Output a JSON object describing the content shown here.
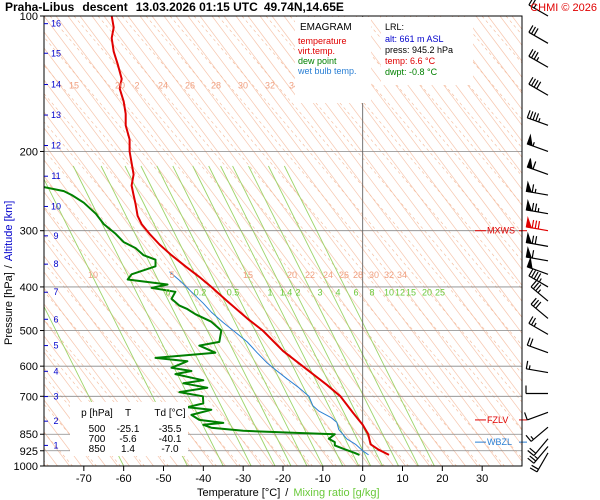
{
  "header": {
    "station": "Praha-Libus",
    "mode": "descent",
    "datetime": "13.03.2026 01:15 UTC",
    "coords": "49.74N,14.65E",
    "credit": "CHMI © 2026"
  },
  "legend": {
    "title": "EMAGRAM",
    "items": [
      {
        "label": "temperature",
        "color": "#e00000"
      },
      {
        "label": "virt.temp.",
        "color": "#e00000"
      },
      {
        "label": "dew point",
        "color": "#008000"
      },
      {
        "label": "wet bulb temp.",
        "color": "#2a7fd4"
      }
    ]
  },
  "lrl": {
    "title": "LRL:",
    "alt": "alt: 661 m ASL",
    "press": "press: 945.2 hPa",
    "temp": "temp: 6.6 °C",
    "dwpt": "dwpt: -0.8 °C",
    "alt_color": "#0000cc",
    "press_color": "#000000",
    "temp_color": "#e00000",
    "dwpt_color": "#008000"
  },
  "table": {
    "headers": [
      "p [hPa]",
      "T",
      "Td [°C]"
    ],
    "rows": [
      [
        "500",
        "-25.1",
        "-35.5"
      ],
      [
        "700",
        "-5.6",
        "-40.1"
      ],
      [
        "850",
        "1.4",
        "-7.0"
      ]
    ]
  },
  "levels": [
    {
      "label": "MXWS",
      "p": 300,
      "color": "#e00000"
    },
    {
      "label": "FZLV",
      "p": 790,
      "color": "#e00000"
    },
    {
      "label": "WBZL",
      "p": 885,
      "color": "#2a7fd4"
    }
  ],
  "axes": {
    "ylabel_pressure": "Pressure [hPa]",
    "ylabel_sep": "/",
    "ylabel_altitude": "Altitude [km]",
    "xlabel_temp": "Temperature [°C]",
    "xlabel_sep": "/",
    "xlabel_mix": "Mixing ratio [g/kg]"
  },
  "chart_data": {
    "type": "line",
    "title": "Praha-Libus descent 13.03.2026 01:15 UTC 49.74N,14.65E",
    "xlabel": "Temperature [°C] / Mixing ratio [g/kg]",
    "ylabel": "Pressure [hPa] / Altitude [km]",
    "xlim": [
      -80,
      40
    ],
    "ylim": [
      1000,
      100
    ],
    "y_scale": "log",
    "x_ticks": [
      -70,
      -60,
      -50,
      -40,
      -30,
      -20,
      -10,
      0,
      10,
      20,
      30
    ],
    "y_ticks": [
      100,
      200,
      300,
      400,
      500,
      600,
      700,
      850,
      925,
      1000
    ],
    "altitude_ticks": [
      {
        "km": 1,
        "p": 900
      },
      {
        "km": 2,
        "p": 795
      },
      {
        "km": 3,
        "p": 701
      },
      {
        "km": 4,
        "p": 616
      },
      {
        "km": 5,
        "p": 540
      },
      {
        "km": 6,
        "p": 472
      },
      {
        "km": 7,
        "p": 411
      },
      {
        "km": 8,
        "p": 356
      },
      {
        "km": 9,
        "p": 308
      },
      {
        "km": 10,
        "p": 265
      },
      {
        "km": 11,
        "p": 227
      },
      {
        "km": 12,
        "p": 194
      },
      {
        "km": 13,
        "p": 166
      },
      {
        "km": 14,
        "p": 142
      },
      {
        "km": 15,
        "p": 121
      },
      {
        "km": 16,
        "p": 104
      }
    ],
    "mixing_ratio_labels_upper": [
      "15",
      "20",
      "2",
      "24",
      "26",
      "28",
      "30",
      "32",
      "34"
    ],
    "mixing_ratio_labels_mid": [
      "10",
      "5",
      "15",
      "20",
      "22",
      "24",
      "26",
      "28",
      "30",
      "32",
      "34"
    ],
    "mixing_ratio_labels_green": [
      "0",
      "0.2",
      "0.5",
      "1",
      "1.4",
      "2",
      "3",
      "4",
      "6",
      "8",
      "10",
      "12",
      "15",
      "20",
      "25"
    ],
    "series": [
      {
        "name": "temperature",
        "color": "#e00000",
        "points": [
          [
            6.6,
            945
          ],
          [
            4,
            920
          ],
          [
            2,
            895
          ],
          [
            1.4,
            850
          ],
          [
            0,
            810
          ],
          [
            -1,
            790
          ],
          [
            -2.5,
            760
          ],
          [
            -5.6,
            700
          ],
          [
            -9,
            660
          ],
          [
            -14,
            610
          ],
          [
            -20,
            555
          ],
          [
            -25.1,
            500
          ],
          [
            -29,
            470
          ],
          [
            -34,
            430
          ],
          [
            -38,
            400
          ],
          [
            -41,
            380
          ],
          [
            -44.5,
            360
          ],
          [
            -48,
            340
          ],
          [
            -51,
            322
          ],
          [
            -53.5,
            305
          ],
          [
            -55.5,
            290
          ],
          [
            -56.5,
            278
          ],
          [
            -57,
            262
          ],
          [
            -57.5,
            250
          ],
          [
            -58,
            238
          ],
          [
            -57.5,
            225
          ],
          [
            -58,
            212
          ],
          [
            -58.5,
            200
          ],
          [
            -58.5,
            188
          ],
          [
            -59.5,
            175
          ],
          [
            -59.5,
            165
          ],
          [
            -60,
            155
          ],
          [
            -61,
            145
          ],
          [
            -60.5,
            138
          ],
          [
            -61.5,
            128
          ],
          [
            -62.5,
            120
          ],
          [
            -63,
            112
          ],
          [
            -62.5,
            106
          ],
          [
            -63,
            100
          ]
        ]
      },
      {
        "name": "dew point",
        "color": "#008000",
        "points": [
          [
            -0.8,
            945
          ],
          [
            -2,
            935
          ],
          [
            -5,
            915
          ],
          [
            -7,
            900
          ],
          [
            -7,
            885
          ],
          [
            -8.5,
            870
          ],
          [
            -7,
            850
          ],
          [
            -15,
            845
          ],
          [
            -30,
            835
          ],
          [
            -38,
            822
          ],
          [
            -40,
            810
          ],
          [
            -35,
            802
          ],
          [
            -41,
            790
          ],
          [
            -43,
            770
          ],
          [
            -38,
            750
          ],
          [
            -44,
            740
          ],
          [
            -40,
            726
          ],
          [
            -40.1,
            700
          ],
          [
            -46,
            685
          ],
          [
            -39,
            670
          ],
          [
            -45,
            655
          ],
          [
            -40,
            645
          ],
          [
            -47,
            625
          ],
          [
            -43,
            615
          ],
          [
            -48,
            605
          ],
          [
            -44,
            585
          ],
          [
            -52,
            575
          ],
          [
            -37,
            560
          ],
          [
            -41,
            540
          ],
          [
            -36,
            530
          ],
          [
            -35.5,
            500
          ],
          [
            -38,
            478
          ],
          [
            -42,
            460
          ],
          [
            -44,
            448
          ],
          [
            -46,
            440
          ],
          [
            -48,
            425
          ],
          [
            -47,
            410
          ],
          [
            -53,
            402
          ],
          [
            -49,
            395
          ],
          [
            -59,
            385
          ],
          [
            -58,
            375
          ],
          [
            -52,
            360
          ],
          [
            -52,
            348
          ],
          [
            -55,
            340
          ],
          [
            -57,
            328
          ],
          [
            -60,
            318
          ],
          [
            -62,
            305
          ],
          [
            -65,
            290
          ],
          [
            -67,
            275
          ],
          [
            -70,
            260
          ],
          [
            -73,
            250
          ],
          [
            -75,
            245
          ],
          [
            -80,
            240
          ]
        ]
      },
      {
        "name": "wet bulb temp.",
        "color": "#2a7fd4",
        "points": [
          [
            1.5,
            945
          ],
          [
            0,
            925
          ],
          [
            -1.8,
            895
          ],
          [
            -4,
            870
          ],
          [
            -5,
            850
          ],
          [
            -6,
            830
          ],
          [
            -6.5,
            800
          ],
          [
            -8,
            780
          ],
          [
            -11,
            755
          ],
          [
            -12.5,
            735
          ],
          [
            -13.5,
            700
          ],
          [
            -16,
            670
          ],
          [
            -19,
            640
          ],
          [
            -22,
            610
          ],
          [
            -24,
            590
          ],
          [
            -26.5,
            560
          ],
          [
            -29,
            530
          ],
          [
            -32.5,
            500
          ],
          [
            -35,
            480
          ],
          [
            -38,
            455
          ],
          [
            -40,
            435
          ],
          [
            -43,
            410
          ],
          [
            -45.5,
            390
          ],
          [
            -48.5,
            370
          ]
        ]
      }
    ],
    "wind_barbs": [
      {
        "p": 100,
        "dir": 300,
        "kt": 25
      },
      {
        "p": 115,
        "dir": 300,
        "kt": 30
      },
      {
        "p": 130,
        "dir": 300,
        "kt": 35
      },
      {
        "p": 150,
        "dir": 300,
        "kt": 40
      },
      {
        "p": 175,
        "dir": 290,
        "kt": 45
      },
      {
        "p": 200,
        "dir": 290,
        "kt": 55
      },
      {
        "p": 225,
        "dir": 290,
        "kt": 60
      },
      {
        "p": 250,
        "dir": 280,
        "kt": 65
      },
      {
        "p": 275,
        "dir": 280,
        "kt": 75
      },
      {
        "p": 300,
        "dir": 280,
        "kt": 80
      },
      {
        "p": 325,
        "dir": 280,
        "kt": 70
      },
      {
        "p": 350,
        "dir": 280,
        "kt": 60
      },
      {
        "p": 375,
        "dir": 290,
        "kt": 50
      },
      {
        "p": 400,
        "dir": 300,
        "kt": 45
      },
      {
        "p": 430,
        "dir": 310,
        "kt": 35
      },
      {
        "p": 470,
        "dir": 310,
        "kt": 30
      },
      {
        "p": 510,
        "dir": 300,
        "kt": 25
      },
      {
        "p": 560,
        "dir": 290,
        "kt": 20
      },
      {
        "p": 620,
        "dir": 280,
        "kt": 15
      },
      {
        "p": 690,
        "dir": 270,
        "kt": 10
      },
      {
        "p": 760,
        "dir": 250,
        "kt": 10
      },
      {
        "p": 820,
        "dir": 230,
        "kt": 15
      },
      {
        "p": 870,
        "dir": 220,
        "kt": 20
      },
      {
        "p": 905,
        "dir": 220,
        "kt": 25
      },
      {
        "p": 935,
        "dir": 210,
        "kt": 20
      }
    ]
  }
}
